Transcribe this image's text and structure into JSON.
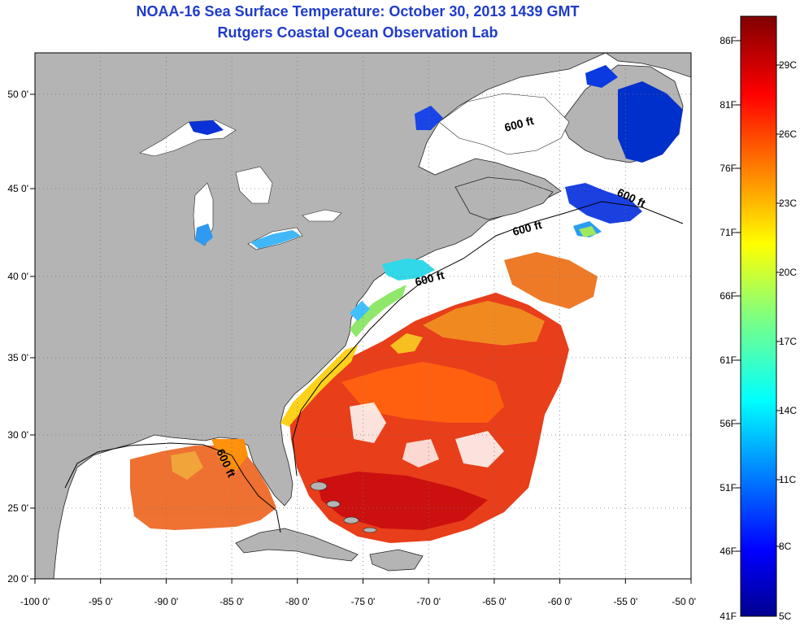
{
  "title": {
    "line1": "NOAA-16 Sea Surface Temperature:  October 30, 2013 1439 GMT",
    "line2": "Rutgers Coastal Ocean Observation Lab"
  },
  "map": {
    "lon_range": [
      -100,
      -50
    ],
    "lat_range": [
      20,
      52.5
    ],
    "lon_ticks": [
      "-100 0'",
      "-95 0'",
      "-90 0'",
      "-85 0'",
      "-80 0'",
      "-75 0'",
      "-70 0'",
      "-65 0'",
      "-60 0'",
      "-55 0'",
      "-50 0'"
    ],
    "lat_ticks": [
      "20 0'",
      "25 0'",
      "30 0'",
      "35 0'",
      "40 0'",
      "45 0'",
      "50 0'"
    ],
    "contour_labels": [
      "600 ft",
      "600 ft",
      "600 ft",
      "600 ft",
      "600 ft"
    ],
    "land_color": "#b4b4b4",
    "ocean_color": "#ffffff",
    "grid": "dotted"
  },
  "colorbar": {
    "fahrenheit_labels": [
      "86F",
      "81F",
      "76F",
      "71F",
      "66F",
      "61F",
      "56F",
      "51F",
      "46F",
      "41F"
    ],
    "celsius_labels": [
      "29C",
      "26C",
      "23C",
      "20C",
      "17C",
      "14C",
      "11C",
      "8C",
      "5C"
    ],
    "colormap": "jet",
    "colors": [
      "#00008f",
      "#0000ff",
      "#0080ff",
      "#00ffff",
      "#80ff80",
      "#ffff00",
      "#ff8000",
      "#ff0000",
      "#800000"
    ]
  }
}
